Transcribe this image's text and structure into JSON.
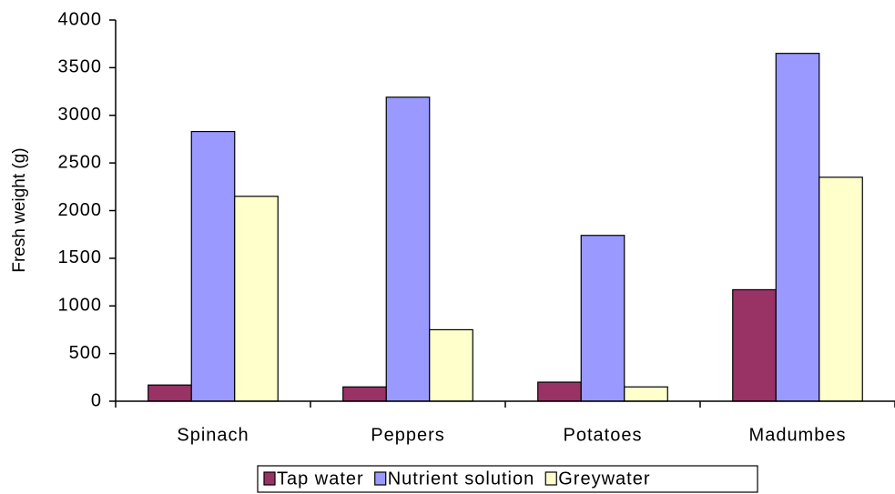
{
  "chart_data": {
    "type": "bar",
    "y_label": "Fresh weight (g)",
    "categories": [
      "Spinach",
      "Peppers",
      "Potatoes",
      "Madumbes"
    ],
    "series": [
      {
        "name": "Tap water",
        "color": "#993366",
        "values": [
          170,
          150,
          200,
          1170
        ]
      },
      {
        "name": "Nutrient solution",
        "color": "#9999ff",
        "values": [
          2830,
          3190,
          1740,
          3650
        ]
      },
      {
        "name": "Greywater",
        "color": "#ffffcc",
        "values": [
          2150,
          750,
          150,
          2350
        ]
      }
    ],
    "ylim": [
      0,
      4000
    ],
    "yticks": [
      0,
      500,
      1000,
      1500,
      2000,
      2500,
      3000,
      3500,
      4000
    ],
    "grid": false,
    "legend": "bottom"
  }
}
